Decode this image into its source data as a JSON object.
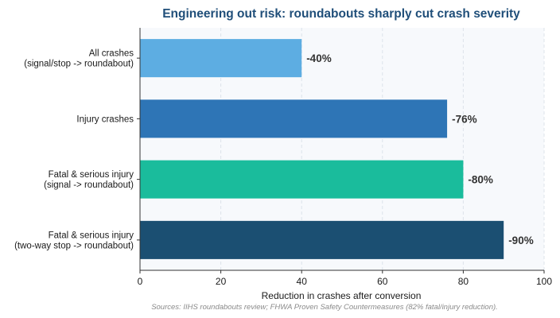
{
  "chart_data": {
    "type": "bar",
    "orientation": "horizontal",
    "title": "Engineering out risk: roundabouts sharply cut crash severity",
    "xlabel": "Reduction in crashes after conversion",
    "ylabel": "",
    "xlim": [
      0,
      100
    ],
    "xticks": [
      "0",
      "20",
      "40",
      "60",
      "80",
      "100"
    ],
    "categories": [
      [
        "All crashes",
        "(signal/stop -> roundabout)"
      ],
      [
        "Injury crashes"
      ],
      [
        "Fatal & serious injury",
        "(signal -> roundabout)"
      ],
      [
        "Fatal & serious injury",
        "(two-way stop -> roundabout)"
      ]
    ],
    "values": [
      40,
      76,
      80,
      90
    ],
    "data_labels": [
      "-40%",
      "-76%",
      "-80%",
      "-90%"
    ],
    "colors": [
      "#5dade2",
      "#2e75b6",
      "#1abc9c",
      "#1b4f72"
    ],
    "grid": "vertical dashed",
    "source": "Sources: IIHS roundabouts review; FHWA Proven Safety Countermeasures (82% fatal/injury reduction)."
  },
  "style": {
    "title_color": "#1f4e79",
    "plot_background": "#f7f9fc",
    "axis_color": "#333333",
    "grid_color": "#dde3ea"
  }
}
